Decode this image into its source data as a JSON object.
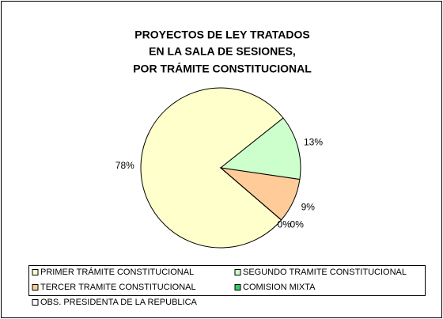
{
  "chart_data": {
    "type": "pie",
    "title": [
      "PROYECTOS DE LEY TRATADOS",
      "EN LA SALA DE SESIONES,",
      "POR TRÁMITE CONSTITUCIONAL"
    ],
    "categories": [
      "PRIMER TRÁMITE CONSTITUCIONAL",
      "SEGUNDO TRAMITE CONSTITUCIONAL",
      "TERCER TRAMITE CONSTITUCIONAL",
      "COMISION MIXTA",
      "OBS. PRESIDENTA DE LA REPUBLICA"
    ],
    "values": [
      78,
      13,
      9,
      0,
      0
    ],
    "value_labels": [
      "78%",
      "13%",
      "9%",
      "0%",
      "0%"
    ],
    "colors": [
      "#FFFFCC",
      "#CCFFCC",
      "#FFCC99",
      "#33CC66",
      "#FFFFFF"
    ]
  }
}
